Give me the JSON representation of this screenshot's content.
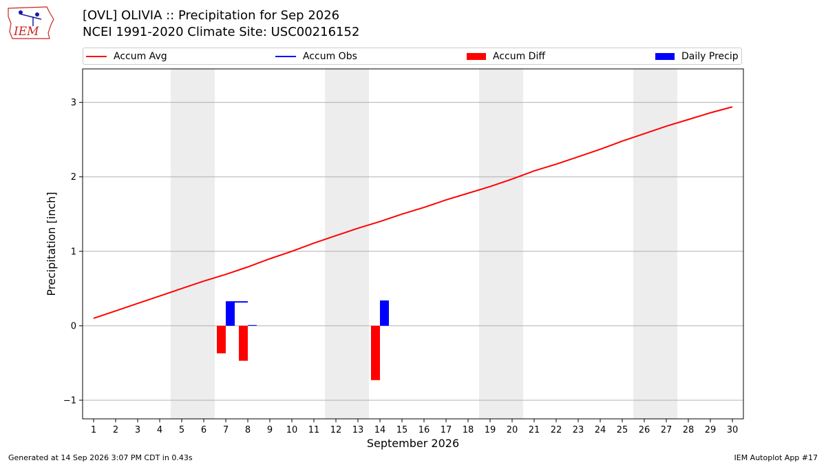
{
  "logo": {
    "text": "IEM"
  },
  "header": {
    "title": "[OVL] OLIVIA :: Precipitation for Sep 2026",
    "subtitle": "NCEI 1991-2020 Climate Site: USC00216152"
  },
  "legend": [
    {
      "label": "Accum Avg",
      "kind": "line",
      "color": "#ff0000"
    },
    {
      "label": "Accum Obs",
      "kind": "line",
      "color": "#0000ff"
    },
    {
      "label": "Accum Diff",
      "kind": "box",
      "color": "#ff0000"
    },
    {
      "label": "Daily Precip",
      "kind": "box",
      "color": "#0000ff"
    }
  ],
  "footer": {
    "left": "Generated at 14 Sep 2026 3:07 PM CDT in 0.43s",
    "right": "IEM Autoplot App #17"
  },
  "chart_data": {
    "type": "bar",
    "xlabel": "September 2026",
    "ylabel": "Precipitation [inch]",
    "xlim": [
      0.5,
      30.5
    ],
    "ylim": [
      -1.25,
      3.45
    ],
    "yticks": [
      -1,
      0,
      1,
      2,
      3
    ],
    "ytick_labels": [
      "−1",
      "0",
      "1",
      "2",
      "3"
    ],
    "days": [
      1,
      2,
      3,
      4,
      5,
      6,
      7,
      8,
      9,
      10,
      11,
      12,
      13,
      14,
      15,
      16,
      17,
      18,
      19,
      20,
      21,
      22,
      23,
      24,
      25,
      26,
      27,
      28,
      29,
      30
    ],
    "weekend_shading": [
      [
        5,
        6
      ],
      [
        12,
        13
      ],
      [
        19,
        20
      ],
      [
        26,
        27
      ]
    ],
    "grid": "horizontal",
    "accum_avg": [
      0.1,
      0.2,
      0.3,
      0.4,
      0.5,
      0.6,
      0.69,
      0.79,
      0.9,
      1.0,
      1.11,
      1.21,
      1.31,
      1.4,
      1.5,
      1.59,
      1.69,
      1.78,
      1.87,
      1.97,
      2.08,
      2.17,
      2.27,
      2.37,
      2.48,
      2.58,
      2.68,
      2.77,
      2.86,
      2.94
    ],
    "accum_obs": [
      [
        7,
        0.32
      ],
      [
        8,
        0.32
      ]
    ],
    "accum_diff": [
      [
        7,
        -0.37
      ],
      [
        8,
        -0.47
      ],
      [
        14,
        -0.73
      ]
    ],
    "daily_precip": [
      [
        7,
        0.32
      ],
      [
        8,
        0.01
      ],
      [
        14,
        0.34
      ]
    ],
    "colors": {
      "avg": "#ff0000",
      "obs": "#0000ff",
      "diff": "#ff0000",
      "daily": "#0000ff",
      "shade": "#ededed",
      "grid": "#b0b0b0"
    }
  }
}
